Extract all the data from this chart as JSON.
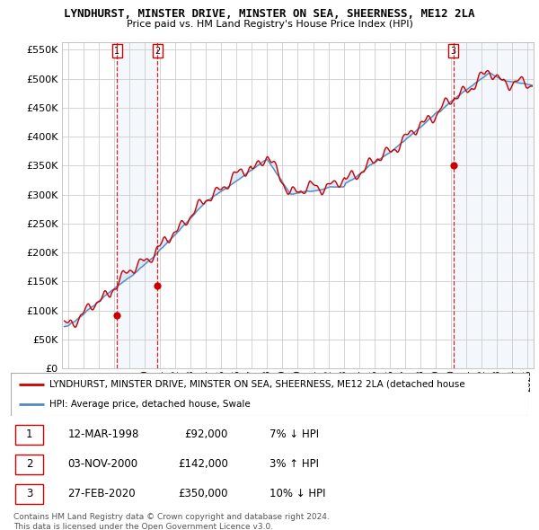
{
  "title": "LYNDHURST, MINSTER DRIVE, MINSTER ON SEA, SHEERNESS, ME12 2LA",
  "subtitle": "Price paid vs. HM Land Registry's House Price Index (HPI)",
  "ylim": [
    0,
    562500
  ],
  "yticks": [
    0,
    50000,
    100000,
    150000,
    200000,
    250000,
    300000,
    350000,
    400000,
    450000,
    500000,
    550000
  ],
  "xlim_start": 1994.6,
  "xlim_end": 2025.4,
  "sale_dates": [
    1998.19,
    2000.84,
    2020.16
  ],
  "sale_prices": [
    92000,
    142000,
    350000
  ],
  "sale_labels": [
    "1",
    "2",
    "3"
  ],
  "legend_label_red": "LYNDHURST, MINSTER DRIVE, MINSTER ON SEA, SHEERNESS, ME12 2LA (detached house",
  "legend_label_blue": "HPI: Average price, detached house, Swale",
  "table_rows": [
    [
      "1",
      "12-MAR-1998",
      "£92,000",
      "7% ↓ HPI"
    ],
    [
      "2",
      "03-NOV-2000",
      "£142,000",
      "3% ↑ HPI"
    ],
    [
      "3",
      "27-FEB-2020",
      "£350,000",
      "10% ↓ HPI"
    ]
  ],
  "footnote": "Contains HM Land Registry data © Crown copyright and database right 2024.\nThis data is licensed under the Open Government Licence v3.0.",
  "red_color": "#cc0000",
  "blue_color": "#5588bb",
  "fill_color": "#ddeeff",
  "vline_color": "#cc0000",
  "grid_color": "#cccccc",
  "background_color": "#ffffff"
}
